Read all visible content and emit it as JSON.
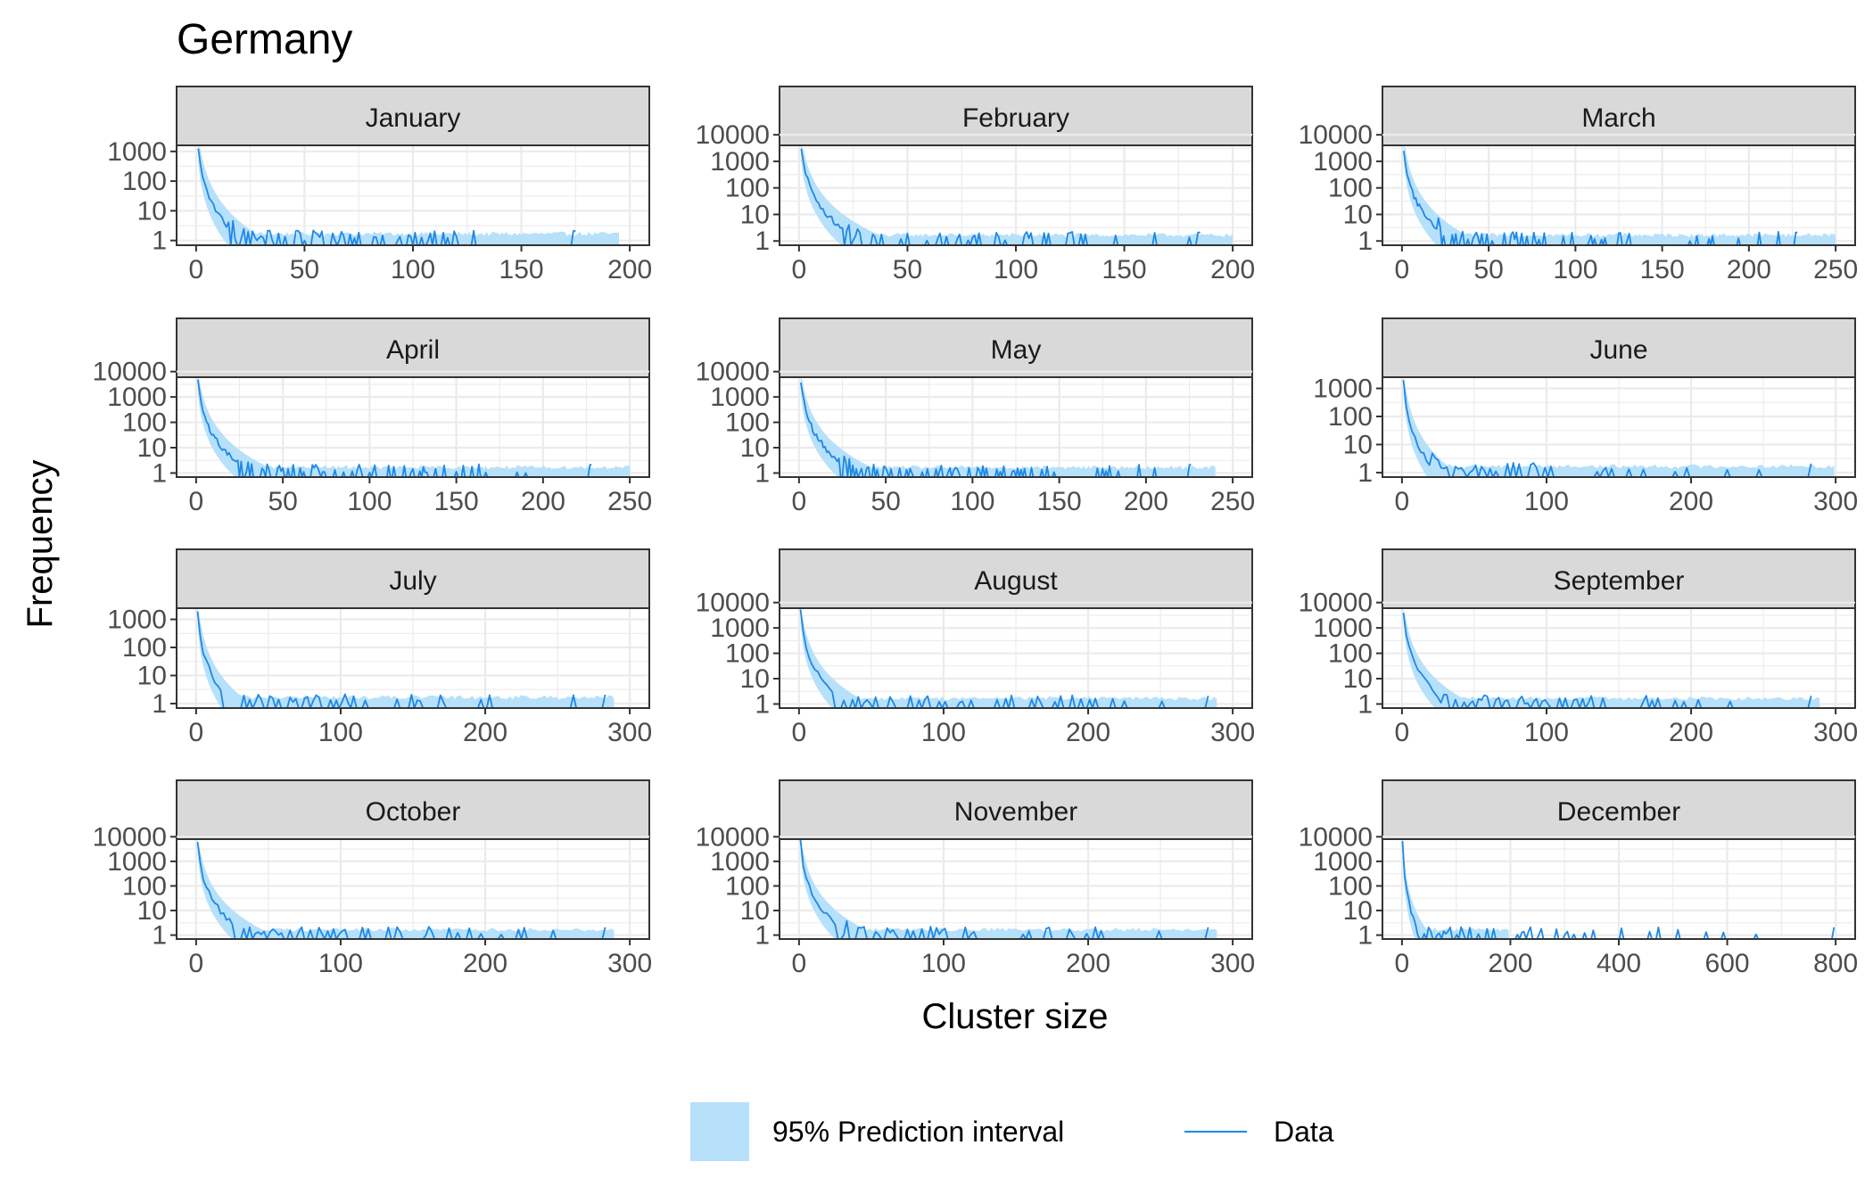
{
  "title": "Germany",
  "xlabel": "Cluster size",
  "ylabel": "Frequency",
  "legend": {
    "interval_label": "95% Prediction interval",
    "data_label": "Data",
    "placement": "bottom"
  },
  "colors": {
    "interval": "#b7e0fa",
    "data": "#1e88e5",
    "strip_bg": "#d9d9d9",
    "grid": "#ebebeb",
    "border": "#333333"
  },
  "chart_data": [
    {
      "type": "line",
      "panel": "January",
      "xlim": [
        0,
        200
      ],
      "xticks": [
        0,
        50,
        100,
        150,
        200
      ],
      "yscale": "log10",
      "yticks": [
        1,
        10,
        100,
        1000
      ],
      "ytick_labels": [
        "1",
        "10",
        "100",
        "1000"
      ],
      "ylim_top": 1600,
      "data_max_x": 175,
      "interval_max_x": 195
    },
    {
      "type": "line",
      "panel": "February",
      "xlim": [
        0,
        200
      ],
      "xticks": [
        0,
        50,
        100,
        150,
        200
      ],
      "yscale": "log10",
      "yticks": [
        1,
        10,
        100,
        1000,
        10000
      ],
      "ytick_labels": [
        "1",
        "10",
        "100",
        "1000",
        "10000"
      ],
      "ylim_top": 4000,
      "data_max_x": 185,
      "interval_max_x": 200
    },
    {
      "type": "line",
      "panel": "March",
      "xlim": [
        0,
        250
      ],
      "xticks": [
        0,
        50,
        100,
        150,
        200,
        250
      ],
      "yscale": "log10",
      "yticks": [
        1,
        10,
        100,
        1000,
        10000
      ],
      "ytick_labels": [
        "1",
        "10",
        "100",
        "1000",
        "10000"
      ],
      "ylim_top": 4000,
      "data_max_x": 228,
      "interval_max_x": 250
    },
    {
      "type": "line",
      "panel": "April",
      "xlim": [
        0,
        250
      ],
      "xticks": [
        0,
        50,
        100,
        150,
        200,
        250
      ],
      "yscale": "log10",
      "yticks": [
        1,
        10,
        100,
        1000,
        10000
      ],
      "ytick_labels": [
        "1",
        "10",
        "100",
        "1000",
        "10000"
      ],
      "ylim_top": 6000,
      "data_max_x": 228,
      "interval_max_x": 250
    },
    {
      "type": "line",
      "panel": "May",
      "xlim": [
        0,
        250
      ],
      "xticks": [
        0,
        50,
        100,
        150,
        200,
        250
      ],
      "yscale": "log10",
      "yticks": [
        1,
        10,
        100,
        1000,
        10000
      ],
      "ytick_labels": [
        "1",
        "10",
        "100",
        "1000",
        "10000"
      ],
      "ylim_top": 6000,
      "data_max_x": 226,
      "interval_max_x": 240
    },
    {
      "type": "line",
      "panel": "June",
      "xlim": [
        0,
        300
      ],
      "xticks": [
        0,
        100,
        200,
        300
      ],
      "yscale": "log10",
      "yticks": [
        1,
        10,
        100,
        1000
      ],
      "ytick_labels": [
        "1",
        "10",
        "100",
        "1000"
      ],
      "ylim_top": 2500,
      "data_max_x": 284,
      "interval_max_x": 300
    },
    {
      "type": "line",
      "panel": "July",
      "xlim": [
        0,
        300
      ],
      "xticks": [
        0,
        100,
        200,
        300
      ],
      "yscale": "log10",
      "yticks": [
        1,
        10,
        100,
        1000
      ],
      "ytick_labels": [
        "1",
        "10",
        "100",
        "1000"
      ],
      "ylim_top": 2500,
      "data_max_x": 284,
      "interval_max_x": 290
    },
    {
      "type": "line",
      "panel": "August",
      "xlim": [
        0,
        300
      ],
      "xticks": [
        0,
        100,
        200,
        300
      ],
      "yscale": "log10",
      "yticks": [
        1,
        10,
        100,
        1000,
        10000
      ],
      "ytick_labels": [
        "1",
        "10",
        "100",
        "1000",
        "10000"
      ],
      "ylim_top": 6000,
      "data_max_x": 284,
      "interval_max_x": 290
    },
    {
      "type": "line",
      "panel": "September",
      "xlim": [
        0,
        300
      ],
      "xticks": [
        0,
        100,
        200,
        300
      ],
      "yscale": "log10",
      "yticks": [
        1,
        10,
        100,
        1000,
        10000
      ],
      "ytick_labels": [
        "1",
        "10",
        "100",
        "1000",
        "10000"
      ],
      "ylim_top": 6000,
      "data_max_x": 284,
      "interval_max_x": 290
    },
    {
      "type": "line",
      "panel": "October",
      "xlim": [
        0,
        300
      ],
      "xticks": [
        0,
        100,
        200,
        300
      ],
      "yscale": "log10",
      "yticks": [
        1,
        10,
        100,
        1000,
        10000
      ],
      "ytick_labels": [
        "1",
        "10",
        "100",
        "1000",
        "10000"
      ],
      "ylim_top": 8000,
      "data_max_x": 284,
      "interval_max_x": 290
    },
    {
      "type": "line",
      "panel": "November",
      "xlim": [
        0,
        300
      ],
      "xticks": [
        0,
        100,
        200,
        300
      ],
      "yscale": "log10",
      "yticks": [
        1,
        10,
        100,
        1000,
        10000
      ],
      "ytick_labels": [
        "1",
        "10",
        "100",
        "1000",
        "10000"
      ],
      "ylim_top": 8000,
      "data_max_x": 284,
      "interval_max_x": 290
    },
    {
      "type": "line",
      "panel": "December",
      "xlim": [
        0,
        800
      ],
      "xticks": [
        0,
        200,
        400,
        600,
        800
      ],
      "yscale": "log10",
      "yticks": [
        1,
        10,
        100,
        1000,
        10000
      ],
      "ytick_labels": [
        "1",
        "10",
        "100",
        "1000",
        "10000"
      ],
      "ylim_top": 8000,
      "data_max_x": 800,
      "interval_max_x": 200
    }
  ]
}
